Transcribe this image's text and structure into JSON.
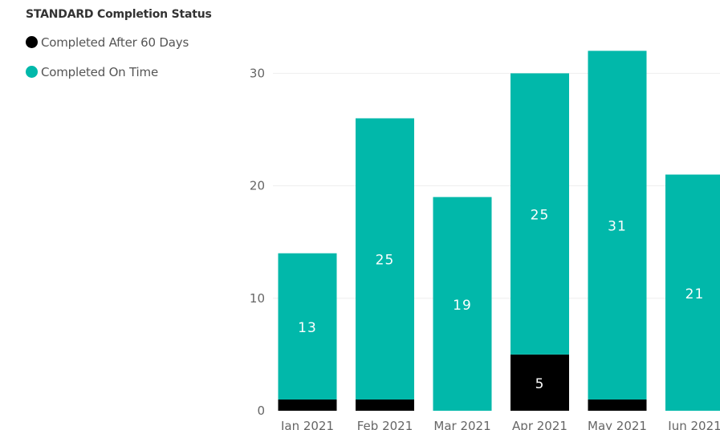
{
  "legend": {
    "title": "STANDARD Completion Status"
  },
  "colors": {
    "completed_after_60": "#000000",
    "completed_on_time": "#01b8aa",
    "gridline": "#eeeeee"
  },
  "chart_data": {
    "type": "bar",
    "stacked": true,
    "categories": [
      "Jan 2021",
      "Feb 2021",
      "Mar 2021",
      "Apr 2021",
      "May 2021",
      "Jun 2021"
    ],
    "series": [
      {
        "name": "Completed After 60 Days",
        "values": [
          1,
          1,
          0,
          5,
          1,
          0
        ],
        "labels": [
          "",
          "",
          "",
          "5",
          "",
          ""
        ]
      },
      {
        "name": "Completed On Time",
        "values": [
          13,
          25,
          19,
          25,
          31,
          21
        ],
        "labels": [
          "13",
          "25",
          "19",
          "25",
          "31",
          "21"
        ]
      }
    ],
    "yticks": [
      0,
      10,
      20,
      30
    ],
    "ylim": [
      0,
      30
    ],
    "grid": true,
    "legend_position": "top-left"
  }
}
